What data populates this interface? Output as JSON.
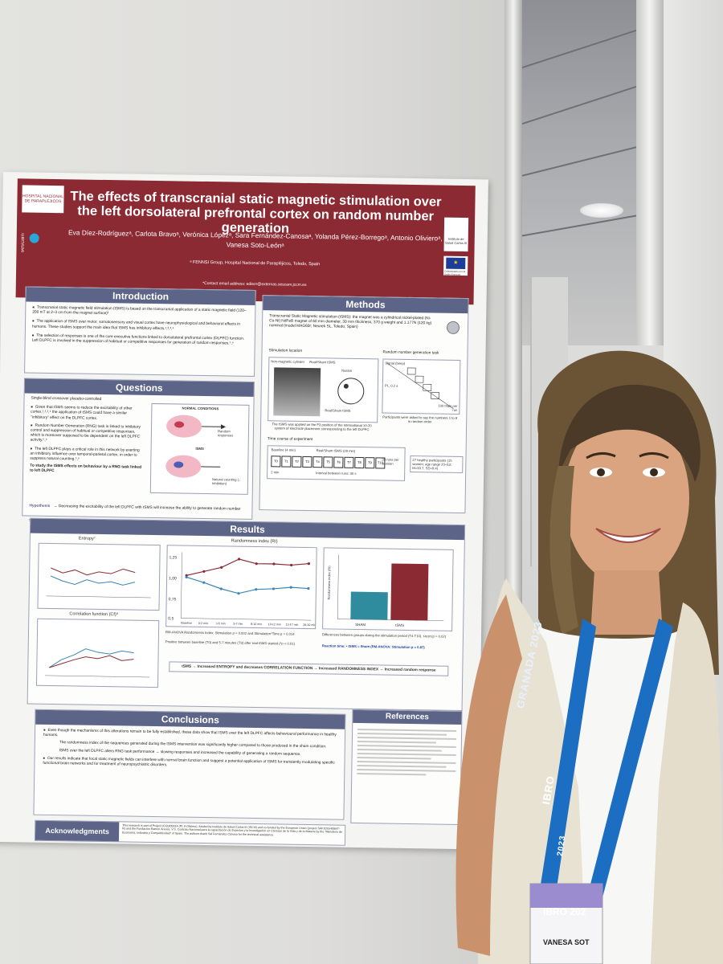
{
  "poster": {
    "logo_hospital": "HOSPITAL NACIONAL DE PARAPLÉJICOS",
    "logo_sescam": "sescam",
    "logo_isc": "Instituto de Salud Carlos III",
    "logo_eu": "Cofinanciado por la Unión Europea",
    "title": "The effects of transcranial static magnetic stimulation over the left dorsolateral prefrontal cortex on random number generation",
    "authors": "Eva Díez-Rodríguezᵃ, Carlota Bravoᵃ, Verónica Lópezᵃ, Sara Fernández-Canosaᵃ, Yolanda Pérez-Borregoᵃ, Antonio Olivieroᵃ, Vanesa Soto-Leónᵃ",
    "affiliation": "ᵃ FENNSI Group, Hospital Nacional de Parapléjicos, Toledo, Spain",
    "contact": "*Contact email address: ediezr@externas.sescam.jccm.es",
    "introduction": {
      "heading": "Introduction",
      "bullets": [
        "Transcranial static magnetic field stimulation (tSMS) is based on the transcranial application of a static magnetic field (120–200 mT at 2–3 cm from the magnet surface)¹",
        "The application of tSMS over motor, somatosensory and visual cortex have neurophysiological and behavioral effects in humans. These studies support the main idea that tSMS has inhibitory effects.¹,²,³,⁴",
        "The selection of responses is one of the core executive functions linked to dorsolateral prefrontal cortex (DLPFC) function. Left DLPFC is involved in the suppression of habitual or competitive responses for generation of random responses.⁵,⁶"
      ]
    },
    "questions": {
      "heading": "Questions",
      "design": "Single-blind crossover placebo-controlled",
      "bullets": [
        "Given that tSMS seems to reduce the excitability of other cortex,¹,²,³,⁴ the application of tSMS could have a similar \"inhibitory\" effect on the DLPFC cortex.",
        "Random Number Generation (RNG) task is linked to inhibitory control and suppression of habitual or competitive responses, which is moreover supposed to be dependent on the left DLPFC activity.⁵,⁶",
        "The left DLPFC plays a critical role in this network by exerting an inhibitory influence over temporal-parietal cortex, in order to suppress natural counting.⁵,⁶"
      ],
      "aim": "To study the tSMS effects on behaviour by a RNG task linked to left DLPFC",
      "figure_top": "NORMAL CONDITIONS",
      "figure_bottom": "tSMS",
      "figure_label1": "Random responses",
      "figure_label2": "Natural counting (↓ Inhibition)",
      "hypothesis_label": "Hypothesis",
      "hypothesis": "→ Decreasing the excitability of the left DLPFC with tSMS will increase the ability to generate random number sequences, by reducing the habitual suppressive responses."
    },
    "methods": {
      "heading": "Methods",
      "description": "Transcranial Static Magnetic stimulation (tSMS): the magnet was a cylindrical nickel-plated (Ni-Cu-Ni) NdFeB magnet of 60 mm diameter, 30 mm thickness, 370 g weight and 1.177N (120 kg) nominal (model MAG60r; Neurek SL, Toledo, Spain)",
      "stim_location": "Stimulation location",
      "rng_task": "Random number generation task",
      "label_cylinder": "Non-magnetic cylinder",
      "label_realsham": "Real/Sham tSMS",
      "label_nasion": "Nasion",
      "label_realsham2": "Real/Sham tSMS",
      "stim_caption": "The tSMS was applied on the F3 position of the International 10-20 system of electrode placement corresponding to the left DLPFC",
      "rng_caption": "Participants were asked to say the numbers 1 to 9 in random order",
      "signal_label": "Signal (beep)",
      "rng_rate": "100 trials per run",
      "rng_interval": "P1, 0.2 s",
      "time_course": "Time course of experiment",
      "baseline": "Baseline (4 min)",
      "realsham": "Real/Sham tSMS (28 min)",
      "blocks": [
        "T0",
        "T1",
        "T2",
        "T3",
        "T4",
        "T5",
        "T6",
        "T7",
        "T8",
        "T9",
        "T10"
      ],
      "runs": "33 runs per session",
      "interval": "Interval between runs: 30 s",
      "participants": "27 healthy participants (15 women; age range 20–53; M=33.7, SD=9.4)",
      "two_min": "2 min"
    },
    "results": {
      "heading": "Results",
      "entropy_title": "Entropy⁷",
      "correlation_title": "Correlation function (Cf)⁸",
      "randomness_title": "Randomness index (RI)",
      "bar_ylabel": "Randomness index (RI)",
      "legend_sham": "SHAM",
      "legend_tsms": "tSMS",
      "stats1": "RM-ANOVA Randomness Index: Stimulation p = 0.002 and Stimulation*Time p = 0.014",
      "stats2": "Positive between baseline (T0) and 5-7 minutes (T3) after real tSMS started (*p < 0.01)",
      "bar_caption": "Differences between groups during the stimulation period (T4-T10). t-test (p = 0.02)",
      "reaction_time": "Reaction time: • tSMS = Sham (RM-ANOVA: Stimulation p = 0.87)",
      "summary": "tSMS → Increased ENTROPY and decreases CORRELATION FUNCTION → Increased RANDOMNESS INDEX → Increased random response",
      "time_labels": [
        "Baseline",
        "0-2 min",
        "3-5 min",
        "5-7 min",
        "8-10 min",
        "10-12 min",
        "13-17 min",
        "28-30 min"
      ],
      "chart_ytick_top": "1,25",
      "chart_ytick_1": "1,00",
      "chart_ytick_2": "0,75",
      "chart_ytick_3": "0,5"
    },
    "conclusions": {
      "heading": "Conclusions",
      "bullets": [
        "Even though the mechanisms of this alterations remain to be fully established, these data show that tSMS over the left DLPFC affects behavioural performance in healthy humans.",
        "The randomness index of the sequences generated during the tSMS intervention was significantly higher compared to those produced in the sham condition.",
        "tSMS over the left DLPFC alters RNG task performance → slowing responses and increased the capability of generating a random sequence.",
        "Our results indicate that focal static magnetic fields can interfere with normal brain function and suggest a potential application of tSMS for transiently modulating specific functional brain networks and for treatment of neuropsychiatric disorders."
      ]
    },
    "references": {
      "heading": "References"
    },
    "acknowledgments": {
      "heading": "Acknowledgments",
      "text": "This research is part of Project ICI20/00014 (PI: A Oliviero), funded by Instituto de Salud Carlos III (ISCIII) and co-funded by the European Union (project SAF2016-80647-R) and the Fundación Ramón Areces. V.S. Contrato Nacional para la capacitación de Expertos y la Investigación en Ciencias de la Vida y de la Materia by the \"Ministerio de Economía, Industria y Competitividad\" of Spain. The authors thank Sal Fernández Canosa for the technical assistance."
    }
  },
  "badge": {
    "lanyard": "GRANADA 2023",
    "lanyard_lower": "IBRO",
    "lanyard_year": "2023",
    "badge_name": "VANESA SOT",
    "badge_logo": "IBRO 202"
  },
  "chart_data": [
    {
      "type": "line",
      "title": "Randomness index (RI)",
      "categories": [
        "Baseline",
        "0-2 min",
        "3-5 min",
        "5-7 min",
        "8-10 min",
        "10-12 min",
        "13-17 min",
        "28-30 min"
      ],
      "ylim": [
        0.5,
        1.25
      ],
      "series": [
        {
          "name": "tSMS",
          "color": "#8c2a34",
          "values": [
            1.0,
            1.05,
            1.1,
            1.2,
            1.15,
            1.15,
            1.14,
            1.16
          ]
        },
        {
          "name": "SHAM",
          "color": "#3a86b4",
          "values": [
            0.98,
            0.92,
            0.85,
            0.8,
            0.85,
            0.86,
            0.88,
            0.87
          ]
        }
      ]
    },
    {
      "type": "bar",
      "title": "Randomness index (RI)",
      "categories": [
        "SHAM",
        "tSMS"
      ],
      "values": [
        0.62,
        0.85
      ],
      "ylim": [
        0.4,
        0.9
      ],
      "colors": [
        "#2f8c9e",
        "#8c2a34"
      ]
    }
  ],
  "colors": {
    "header": "#8c2a34",
    "panel_head": "#5c6488",
    "lanyard": "#1b6ec2"
  }
}
